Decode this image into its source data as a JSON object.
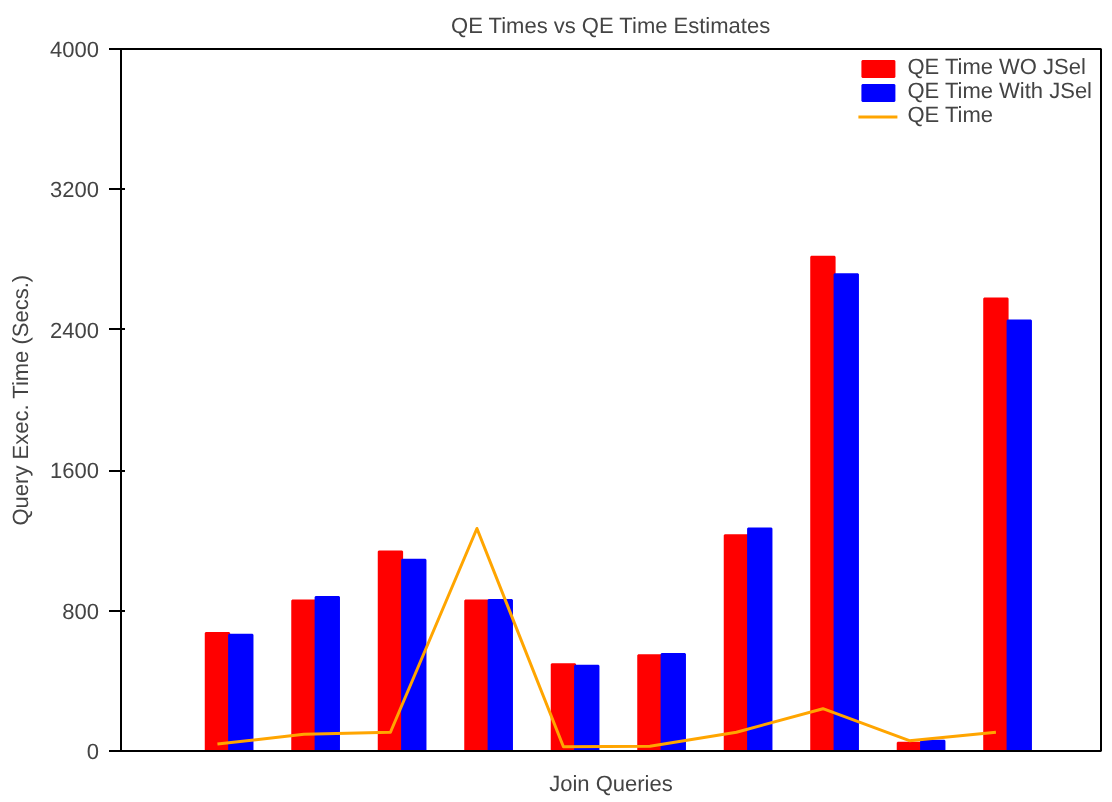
{
  "chart_data": {
    "type": "bar",
    "title": "QE Times vs QE Time Estimates",
    "xlabel": "Join Queries",
    "ylabel": "Query Exec. Time (Secs.)",
    "categories": [
      null,
      null,
      null,
      null,
      null,
      null,
      null,
      null,
      null,
      null
    ],
    "series": [
      {
        "name": "QE Time WO JSel",
        "color": "#ff0000",
        "values": [
          672,
          857,
          1137,
          857,
          494,
          545,
          1229,
          2816,
          47,
          2579
        ]
      },
      {
        "name": "QE Time With JSel",
        "color": "#0000ff",
        "values": [
          663,
          877,
          1090,
          861,
          486,
          553,
          1268,
          2717,
          59,
          2453
        ]
      },
      {
        "name": "QE Time",
        "type": "line",
        "color": "#ffa500",
        "values": [
          40,
          95,
          107,
          1268,
          24,
          27,
          107,
          241,
          59,
          107
        ]
      }
    ],
    "ylim": [
      0,
      4000
    ],
    "yticks": [
      0,
      800,
      1600,
      2400,
      3200,
      4000
    ],
    "grid": false,
    "legend": "top right",
    "marker": "none",
    "line_style": "solid"
  }
}
